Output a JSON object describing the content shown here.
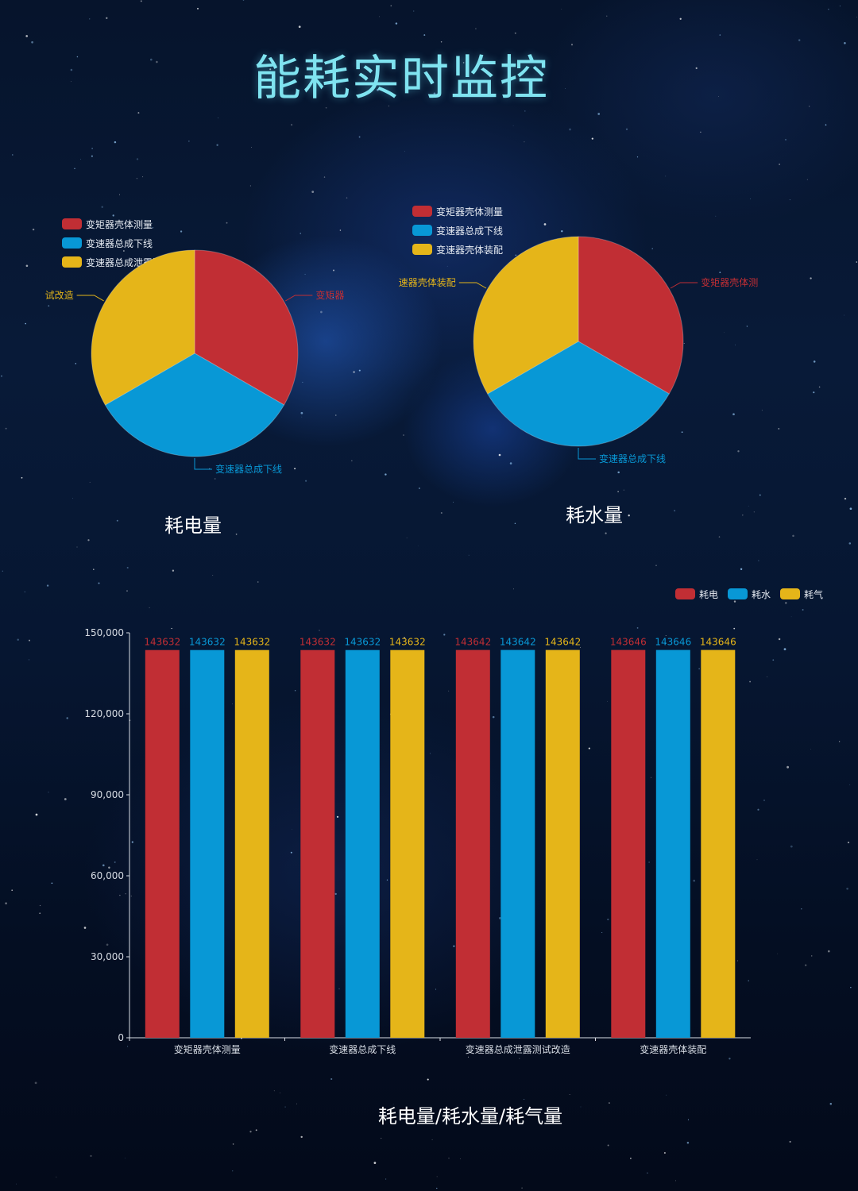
{
  "title": "能耗实时监控",
  "colors": {
    "red": "#c12e34",
    "blue": "#0898d6",
    "yellow": "#e5b519",
    "title": "#7fe3f0",
    "axis": "#d8dde5"
  },
  "chart_data": [
    {
      "type": "pie",
      "caption": "耗电量",
      "legend": [
        "变矩器壳体测量",
        "变速器总成下线",
        "变速器总成泄露测试改造"
      ],
      "slices": [
        {
          "name": "变矩器壳体测量",
          "value": 1,
          "color": "#c12e34",
          "label": "变矩器"
        },
        {
          "name": "变速器总成下线",
          "value": 1,
          "color": "#0898d6",
          "label": "变速器总成下线"
        },
        {
          "name": "变速器总成泄露测试改造",
          "value": 1,
          "color": "#e5b519",
          "label": "试改造"
        }
      ]
    },
    {
      "type": "pie",
      "caption": "耗水量",
      "legend": [
        "变矩器壳体测量",
        "变速器总成下线",
        "变速器壳体装配"
      ],
      "slices": [
        {
          "name": "变矩器壳体测量",
          "value": 1,
          "color": "#c12e34",
          "label": "变矩器壳体测"
        },
        {
          "name": "变速器总成下线",
          "value": 1,
          "color": "#0898d6",
          "label": "变速器总成下线"
        },
        {
          "name": "变速器壳体装配",
          "value": 1,
          "color": "#e5b519",
          "label": "速器壳体装配"
        }
      ]
    },
    {
      "type": "bar",
      "caption": "耗电量/耗水量/耗气量",
      "categories": [
        "变矩器壳体测量",
        "变速器总成下线",
        "变速器总成泄露测试改造",
        "变速器壳体装配"
      ],
      "series": [
        {
          "name": "耗电",
          "color": "#c12e34",
          "values": [
            143632,
            143632,
            143642,
            143646
          ]
        },
        {
          "name": "耗水",
          "color": "#0898d6",
          "values": [
            143632,
            143632,
            143642,
            143646
          ]
        },
        {
          "name": "耗气",
          "color": "#e5b519",
          "values": [
            143632,
            143632,
            143642,
            143646
          ]
        }
      ],
      "ylim": [
        0,
        150000
      ],
      "yticks": [
        0,
        30000,
        60000,
        90000,
        120000,
        150000
      ],
      "ytick_labels": [
        "0",
        "30,000",
        "60,000",
        "90,000",
        "120,000",
        "150,000"
      ],
      "legend_position": "top-right",
      "grid": false
    }
  ]
}
